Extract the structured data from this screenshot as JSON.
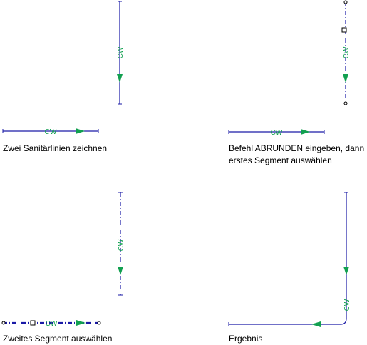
{
  "colors": {
    "pipe": "#1a1aa6",
    "flow_label": "#12a050",
    "text": "#000000",
    "background": "#ffffff"
  },
  "pipe_label": "CW",
  "panels": [
    {
      "caption": "Zwei Sanitärlinien zeichnen"
    },
    {
      "caption": "Befehl ABRUNDEN eingeben, dann\nerstes Segment auswählen"
    },
    {
      "caption": "Zweites Segment auswählen"
    },
    {
      "caption": "Ergebnis"
    }
  ]
}
